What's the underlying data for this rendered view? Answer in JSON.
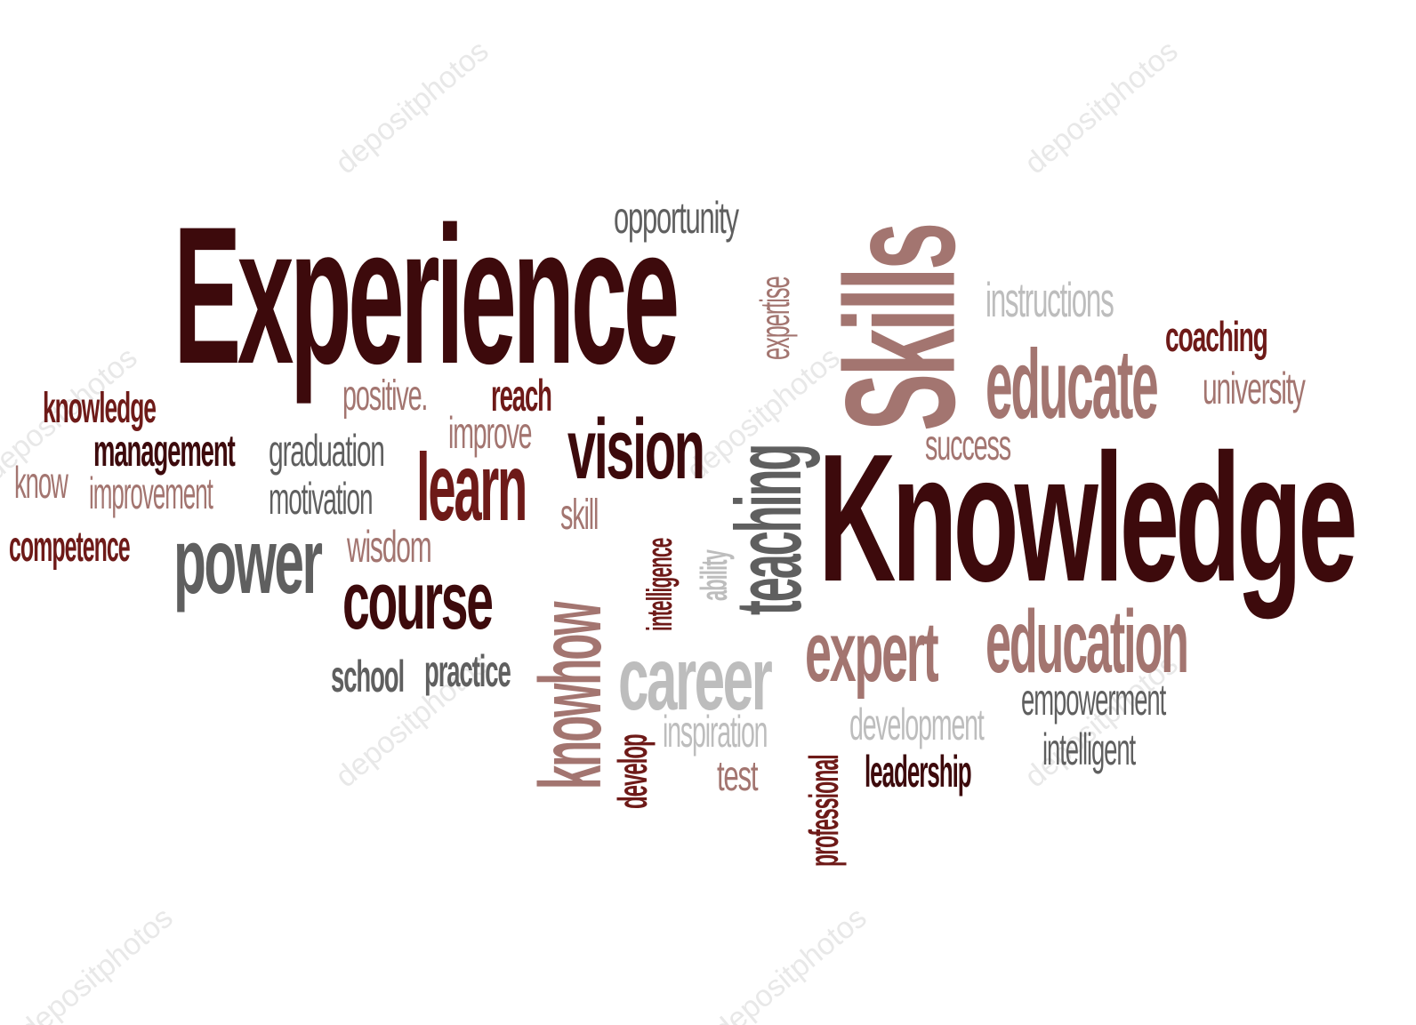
{
  "colors": {
    "background": "#ffffff",
    "dark": "#3d0a0c",
    "maroon": "#6e1a18",
    "rose": "#a37570",
    "gray": "#5f5f5f",
    "light_gray": "#bdbdbd"
  },
  "words": [
    {
      "text": "Experience",
      "color": "#3d0a0c"
    },
    {
      "text": "Knowledge",
      "color": "#3d0a0c"
    },
    {
      "text": "Skills",
      "color": "#a37570"
    },
    {
      "text": "opportunity",
      "color": "#5f5f5f"
    },
    {
      "text": "expertise",
      "color": "#a37570"
    },
    {
      "text": "instructions",
      "color": "#bdbdbd"
    },
    {
      "text": "coaching",
      "color": "#6e1a18"
    },
    {
      "text": "educate",
      "color": "#a37570"
    },
    {
      "text": "university",
      "color": "#a37570"
    },
    {
      "text": "knowledge",
      "color": "#6e1a18"
    },
    {
      "text": "positive.",
      "color": "#a37570"
    },
    {
      "text": "reach",
      "color": "#6e1a18"
    },
    {
      "text": "improve",
      "color": "#a37570"
    },
    {
      "text": "vision",
      "color": "#3d0a0c"
    },
    {
      "text": "success",
      "color": "#a37570"
    },
    {
      "text": "management",
      "color": "#3d0a0c"
    },
    {
      "text": "graduation",
      "color": "#5f5f5f"
    },
    {
      "text": "know",
      "color": "#a37570"
    },
    {
      "text": "improvement",
      "color": "#a37570"
    },
    {
      "text": "motivation",
      "color": "#5f5f5f"
    },
    {
      "text": "learn",
      "color": "#6e1a18"
    },
    {
      "text": "teaching",
      "color": "#5f5f5f"
    },
    {
      "text": "skill",
      "color": "#a37570"
    },
    {
      "text": "intelligence",
      "color": "#6e1a18"
    },
    {
      "text": "ability",
      "color": "#bdbdbd"
    },
    {
      "text": "competence",
      "color": "#6e1a18"
    },
    {
      "text": "power",
      "color": "#5f5f5f"
    },
    {
      "text": "wisdom",
      "color": "#a37570"
    },
    {
      "text": "course",
      "color": "#3d0a0c"
    },
    {
      "text": "knowhow",
      "color": "#a37570"
    },
    {
      "text": "expert",
      "color": "#a37570"
    },
    {
      "text": "education",
      "color": "#a37570"
    },
    {
      "text": "career",
      "color": "#bdbdbd"
    },
    {
      "text": "school",
      "color": "#5f5f5f"
    },
    {
      "text": "practice",
      "color": "#5f5f5f"
    },
    {
      "text": "empowerment",
      "color": "#5f5f5f"
    },
    {
      "text": "develop",
      "color": "#6e1a18"
    },
    {
      "text": "inspiration",
      "color": "#bdbdbd"
    },
    {
      "text": "development",
      "color": "#bdbdbd"
    },
    {
      "text": "professional",
      "color": "#6e1a18"
    },
    {
      "text": "intelligent",
      "color": "#5f5f5f"
    },
    {
      "text": "leadership",
      "color": "#3d0a0c"
    },
    {
      "text": "test",
      "color": "#a37570"
    }
  ],
  "watermark": {
    "text": "depositphotos"
  }
}
